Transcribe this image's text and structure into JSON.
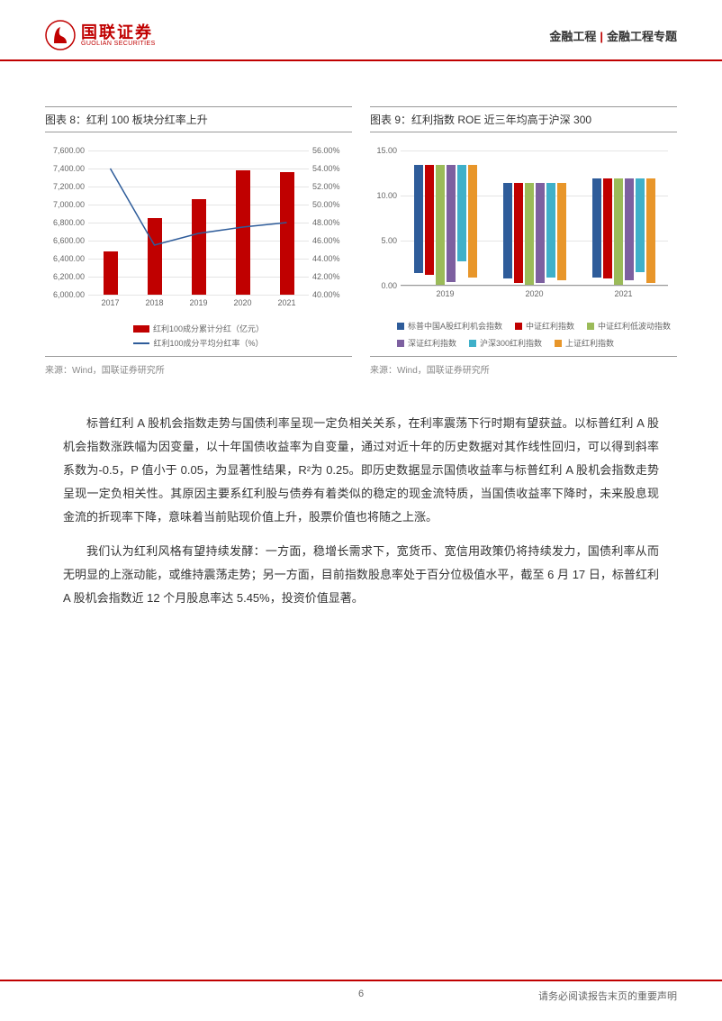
{
  "header": {
    "brand_cn": "国联证券",
    "brand_en": "GUOLIAN SECURITIES",
    "category_main": "金融工程",
    "category_sub": "金融工程专题"
  },
  "chart8": {
    "title": "图表 8：红利 100 板块分红率上升",
    "type": "bar+line",
    "categories": [
      "2017",
      "2018",
      "2019",
      "2020",
      "2021"
    ],
    "y1_min": 6000,
    "y1_max": 7600,
    "y1_step": 200,
    "y1_labels": [
      "6,000.00",
      "6,200.00",
      "6,400.00",
      "6,600.00",
      "6,800.00",
      "7,000.00",
      "7,200.00",
      "7,400.00",
      "7,600.00"
    ],
    "y2_min": 40,
    "y2_max": 56,
    "y2_step": 2,
    "y2_labels": [
      "40.00%",
      "42.00%",
      "44.00%",
      "46.00%",
      "48.00%",
      "50.00%",
      "52.00%",
      "54.00%",
      "56.00%"
    ],
    "bars": [
      6480,
      6850,
      7060,
      7380,
      7360
    ],
    "line": [
      54.0,
      45.5,
      46.8,
      47.5,
      48.0
    ],
    "bar_color": "#c00000",
    "line_color": "#2e5c9a",
    "grid_color": "#e5e5e5",
    "legend_bar": "红利100成分累计分红（亿元）",
    "legend_line": "红利100成分平均分红率（%）",
    "source": "来源：Wind，国联证券研究所"
  },
  "chart9": {
    "title": "图表 9：红利指数 ROE 近三年均高于沪深 300",
    "type": "grouped-bar",
    "categories": [
      "2019",
      "2020",
      "2021"
    ],
    "y_min": 0,
    "y_max": 15,
    "y_step": 5,
    "y_labels": [
      "0.00",
      "5.00",
      "10.00",
      "15.00"
    ],
    "series": [
      {
        "name": "标普中国A股红利机会指数",
        "color": "#2e5c9a",
        "values": [
          12.0,
          10.6,
          11.0
        ]
      },
      {
        "name": "中证红利指数",
        "color": "#c00000",
        "values": [
          12.2,
          11.1,
          11.1
        ]
      },
      {
        "name": "中证红利低波动指数",
        "color": "#9bbb59",
        "values": [
          13.3,
          11.3,
          11.8
        ]
      },
      {
        "name": "深证红利指数",
        "color": "#7d60a0",
        "values": [
          13.0,
          11.1,
          11.3
        ]
      },
      {
        "name": "沪深300红利指数",
        "color": "#3fb0c9",
        "values": [
          10.7,
          10.5,
          10.4
        ]
      },
      {
        "name": "上证红利指数",
        "color": "#e8962a",
        "values": [
          12.5,
          10.8,
          11.6
        ]
      }
    ],
    "grid_color": "#e5e5e5",
    "source": "来源：Wind，国联证券研究所"
  },
  "paragraphs": [
    "标普红利 A 股机会指数走势与国债利率呈现一定负相关关系，在利率震荡下行时期有望获益。以标普红利 A 股机会指数涨跌幅为因变量，以十年国债收益率为自变量，通过对近十年的历史数据对其作线性回归，可以得到斜率系数为-0.5，P 值小于 0.05，为显著性结果，R²为 0.25。即历史数据显示国债收益率与标普红利 A 股机会指数走势呈现一定负相关性。其原因主要系红利股与债券有着类似的稳定的现金流特质，当国债收益率下降时，未来股息现金流的折现率下降，意味着当前贴现价值上升，股票价值也将随之上涨。",
    "我们认为红利风格有望持续发酵：一方面，稳增长需求下，宽货币、宽信用政策仍将持续发力，国债利率从而无明显的上涨动能，或维持震荡走势；另一方面，目前指数股息率处于百分位极值水平，截至 6 月 17 日，标普红利 A 股机会指数近 12 个月股息率达 5.45%，投资价值显著。"
  ],
  "footer": {
    "page": "6",
    "disclaimer": "请务必阅读报告末页的重要声明"
  }
}
